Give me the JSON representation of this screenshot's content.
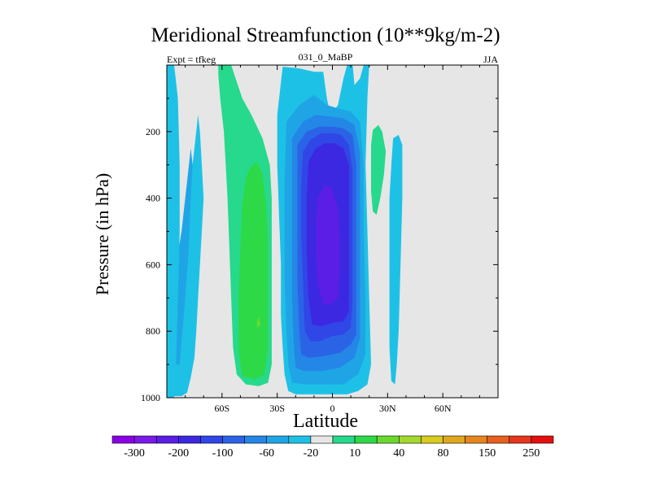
{
  "chart_data": {
    "type": "heatmap",
    "title": "Meridional Streamfunction (10**9kg/m-2)",
    "left_label": "Expt = tfkeg",
    "center_label": "031_0_MaBP",
    "right_label": "JJA",
    "xlabel": "Latitude",
    "ylabel": "Pressure (in hPa)",
    "xlim": [
      -90,
      90
    ],
    "ylim": [
      1000,
      0
    ],
    "x_ticks": [
      {
        "value": -60,
        "label": "60S"
      },
      {
        "value": -30,
        "label": "30S"
      },
      {
        "value": 0,
        "label": "0"
      },
      {
        "value": 30,
        "label": "30N"
      },
      {
        "value": 60,
        "label": "60N"
      }
    ],
    "y_ticks": [
      {
        "value": 200,
        "label": "200"
      },
      {
        "value": 400,
        "label": "400"
      },
      {
        "value": 600,
        "label": "600"
      },
      {
        "value": 800,
        "label": "800"
      },
      {
        "value": 1000,
        "label": "1000"
      }
    ],
    "background_color": "#e6e6e6",
    "colorbar": {
      "colors": [
        "#8a00e6",
        "#7a1ae6",
        "#5a1ee6",
        "#3c28e0",
        "#3046e6",
        "#2b63e6",
        "#2486e6",
        "#1fa5e6",
        "#1ec1e6",
        "#e6e6e6",
        "#26d98c",
        "#2ed948",
        "#6ad92e",
        "#a3d92e",
        "#d9cc1e",
        "#e0a81e",
        "#e6861e",
        "#e6601e",
        "#e6361e",
        "#e60f0f"
      ],
      "labels": [
        "-300",
        "-200",
        "-100",
        "-60",
        "-20",
        "10",
        "40",
        "80",
        "150",
        "250"
      ]
    },
    "contour_regions": [
      {
        "name": "sh-outer-cell",
        "color": "#1ec1e6",
        "points": [
          [
            -89,
            995
          ],
          [
            -82,
            995
          ],
          [
            -79,
            985
          ],
          [
            -77,
            940
          ],
          [
            -75,
            880
          ],
          [
            -74,
            800
          ],
          [
            -73,
            700
          ],
          [
            -72,
            600
          ],
          [
            -71,
            500
          ],
          [
            -70,
            400
          ],
          [
            -71,
            300
          ],
          [
            -72,
            200
          ],
          [
            -73,
            150
          ],
          [
            -75,
            250
          ],
          [
            -77,
            350
          ],
          [
            -80,
            500
          ],
          [
            -84,
            550
          ],
          [
            -87,
            400
          ],
          [
            -89,
            300
          ],
          [
            -90,
            300
          ],
          [
            -90,
            995
          ]
        ]
      },
      {
        "name": "sh-outer-core",
        "color": "#1fa5e6",
        "points": [
          [
            -87,
            900
          ],
          [
            -83,
            900
          ],
          [
            -80,
            700
          ],
          [
            -78,
            550
          ],
          [
            -77,
            400
          ],
          [
            -76,
            300
          ],
          [
            -77,
            250
          ],
          [
            -79,
            350
          ],
          [
            -82,
            500
          ],
          [
            -85,
            600
          ],
          [
            -87,
            700
          ]
        ]
      },
      {
        "name": "sh-narrow-cell",
        "color": "#1ec1e6",
        "points": [
          [
            -90,
            0
          ],
          [
            -86,
            0
          ],
          [
            -84,
            100
          ],
          [
            -83,
            300
          ],
          [
            -83,
            500
          ],
          [
            -84,
            700
          ],
          [
            -85,
            900
          ],
          [
            -86,
            1000
          ],
          [
            -90,
            1000
          ]
        ]
      },
      {
        "name": "ferrel-cell-outer",
        "color": "#26d98c",
        "points": [
          [
            -62,
            0
          ],
          [
            -55,
            0
          ],
          [
            -52,
            50
          ],
          [
            -49,
            100
          ],
          [
            -44,
            150
          ],
          [
            -38,
            220
          ],
          [
            -34,
            300
          ],
          [
            -33,
            400
          ],
          [
            -33,
            600
          ],
          [
            -33,
            800
          ],
          [
            -33,
            900
          ],
          [
            -35,
            955
          ],
          [
            -40,
            965
          ],
          [
            -47,
            960
          ],
          [
            -52,
            930
          ],
          [
            -54,
            850
          ],
          [
            -55,
            700
          ],
          [
            -56,
            550
          ],
          [
            -57,
            400
          ],
          [
            -58,
            300
          ],
          [
            -59,
            200
          ],
          [
            -61,
            100
          ],
          [
            -62,
            30
          ]
        ]
      },
      {
        "name": "ferrel-cell-inner",
        "color": "#2ed948",
        "points": [
          [
            -45,
            310
          ],
          [
            -41,
            290
          ],
          [
            -38,
            330
          ],
          [
            -36,
            420
          ],
          [
            -35,
            550
          ],
          [
            -35,
            700
          ],
          [
            -35,
            850
          ],
          [
            -37,
            930
          ],
          [
            -42,
            945
          ],
          [
            -49,
            935
          ],
          [
            -51,
            860
          ],
          [
            -51,
            700
          ],
          [
            -50,
            550
          ],
          [
            -49,
            420
          ],
          [
            -47,
            340
          ]
        ]
      },
      {
        "name": "ferrel-cell-peak",
        "color": "#6ad92e",
        "points": [
          [
            -40,
            760
          ],
          [
            -39,
            780
          ],
          [
            -41,
            790
          ],
          [
            -41,
            770
          ]
        ]
      },
      {
        "name": "hadley-cell-level1",
        "color": "#1ec1e6",
        "points": [
          [
            -27,
            5
          ],
          [
            -18,
            10
          ],
          [
            -10,
            20
          ],
          [
            -5,
            20
          ],
          [
            -3,
            100
          ],
          [
            -1,
            150
          ],
          [
            3,
            120
          ],
          [
            6,
            40
          ],
          [
            8,
            0
          ],
          [
            11,
            0
          ],
          [
            12,
            60
          ],
          [
            15,
            40
          ],
          [
            17,
            0
          ],
          [
            20,
            0
          ],
          [
            19,
            100
          ],
          [
            18,
            300
          ],
          [
            19,
            500
          ],
          [
            20,
            700
          ],
          [
            21,
            900
          ],
          [
            19,
            960
          ],
          [
            14,
            980
          ],
          [
            8,
            990
          ],
          [
            0,
            990
          ],
          [
            -10,
            990
          ],
          [
            -20,
            990
          ],
          [
            -24,
            980
          ],
          [
            -26,
            930
          ],
          [
            -27,
            850
          ],
          [
            -28,
            750
          ],
          [
            -28,
            600
          ],
          [
            -29,
            450
          ],
          [
            -30,
            300
          ],
          [
            -30,
            150
          ]
        ]
      },
      {
        "name": "hadley-cell-level2",
        "color": "#1fa5e6",
        "points": [
          [
            -25,
            170
          ],
          [
            -18,
            120
          ],
          [
            -10,
            90
          ],
          [
            -3,
            120
          ],
          [
            3,
            130
          ],
          [
            10,
            140
          ],
          [
            15,
            170
          ],
          [
            17,
            300
          ],
          [
            17,
            500
          ],
          [
            18,
            700
          ],
          [
            18,
            870
          ],
          [
            14,
            930
          ],
          [
            6,
            960
          ],
          [
            -4,
            960
          ],
          [
            -14,
            960
          ],
          [
            -22,
            955
          ],
          [
            -24,
            900
          ],
          [
            -25,
            800
          ],
          [
            -26,
            650
          ],
          [
            -26,
            500
          ],
          [
            -26,
            350
          ]
        ]
      },
      {
        "name": "hadley-cell-level3",
        "color": "#2486e6",
        "points": [
          [
            -22,
            220
          ],
          [
            -16,
            170
          ],
          [
            -9,
            150
          ],
          [
            -1,
            155
          ],
          [
            6,
            160
          ],
          [
            12,
            180
          ],
          [
            15,
            260
          ],
          [
            15,
            450
          ],
          [
            15,
            650
          ],
          [
            15,
            820
          ],
          [
            12,
            880
          ],
          [
            4,
            910
          ],
          [
            -6,
            920
          ],
          [
            -15,
            920
          ],
          [
            -20,
            910
          ],
          [
            -21,
            840
          ],
          [
            -22,
            700
          ],
          [
            -22,
            550
          ],
          [
            -22,
            380
          ]
        ]
      },
      {
        "name": "hadley-cell-level4",
        "color": "#2b63e6",
        "points": [
          [
            -19,
            240
          ],
          [
            -14,
            200
          ],
          [
            -7,
            185
          ],
          [
            0,
            185
          ],
          [
            6,
            190
          ],
          [
            11,
            210
          ],
          [
            13,
            300
          ],
          [
            13,
            500
          ],
          [
            13,
            700
          ],
          [
            13,
            810
          ],
          [
            10,
            840
          ],
          [
            4,
            865
          ],
          [
            -5,
            875
          ],
          [
            -13,
            880
          ],
          [
            -17,
            870
          ],
          [
            -18,
            800
          ],
          [
            -19,
            650
          ],
          [
            -19,
            500
          ],
          [
            -19,
            350
          ]
        ]
      },
      {
        "name": "hadley-cell-level5",
        "color": "#3046e6",
        "points": [
          [
            -16,
            260
          ],
          [
            -12,
            225
          ],
          [
            -6,
            205
          ],
          [
            0,
            205
          ],
          [
            5,
            210
          ],
          [
            9,
            240
          ],
          [
            11,
            320
          ],
          [
            11,
            500
          ],
          [
            11,
            700
          ],
          [
            10,
            790
          ],
          [
            6,
            810
          ],
          [
            0,
            815
          ],
          [
            -7,
            830
          ],
          [
            -12,
            830
          ],
          [
            -15,
            800
          ],
          [
            -16,
            650
          ],
          [
            -17,
            500
          ],
          [
            -17,
            360
          ]
        ]
      },
      {
        "name": "hadley-cell-level6",
        "color": "#3c28e0",
        "points": [
          [
            -13,
            290
          ],
          [
            -9,
            250
          ],
          [
            -4,
            235
          ],
          [
            1,
            235
          ],
          [
            6,
            250
          ],
          [
            9,
            300
          ],
          [
            9,
            450
          ],
          [
            9,
            620
          ],
          [
            9,
            740
          ],
          [
            6,
            770
          ],
          [
            0,
            775
          ],
          [
            -6,
            785
          ],
          [
            -11,
            780
          ],
          [
            -13,
            700
          ],
          [
            -14,
            550
          ],
          [
            -14,
            400
          ]
        ]
      },
      {
        "name": "hadley-cell-level7",
        "color": "#5a1ee6",
        "points": [
          [
            -8,
            400
          ],
          [
            -4,
            360
          ],
          [
            0,
            370
          ],
          [
            3,
            430
          ],
          [
            4,
            520
          ],
          [
            4,
            620
          ],
          [
            3,
            700
          ],
          [
            -1,
            720
          ],
          [
            -5,
            720
          ],
          [
            -8,
            660
          ],
          [
            -9,
            560
          ],
          [
            -9,
            470
          ]
        ]
      },
      {
        "name": "nh-cell-small",
        "color": "#26d98c",
        "points": [
          [
            22,
            195
          ],
          [
            25,
            180
          ],
          [
            27,
            200
          ],
          [
            29,
            260
          ],
          [
            28,
            330
          ],
          [
            26,
            400
          ],
          [
            24,
            450
          ],
          [
            22,
            440
          ],
          [
            21,
            380
          ],
          [
            21,
            300
          ],
          [
            21,
            240
          ]
        ]
      },
      {
        "name": "nh-cell-outer",
        "color": "#1ec1e6",
        "points": [
          [
            33,
            220
          ],
          [
            36,
            210
          ],
          [
            38,
            240
          ],
          [
            38,
            400
          ],
          [
            37,
            600
          ],
          [
            36,
            800
          ],
          [
            35,
            900
          ],
          [
            34,
            960
          ],
          [
            32,
            950
          ],
          [
            31,
            850
          ],
          [
            31,
            700
          ],
          [
            31,
            550
          ],
          [
            31,
            400
          ],
          [
            32,
            300
          ]
        ]
      }
    ]
  }
}
